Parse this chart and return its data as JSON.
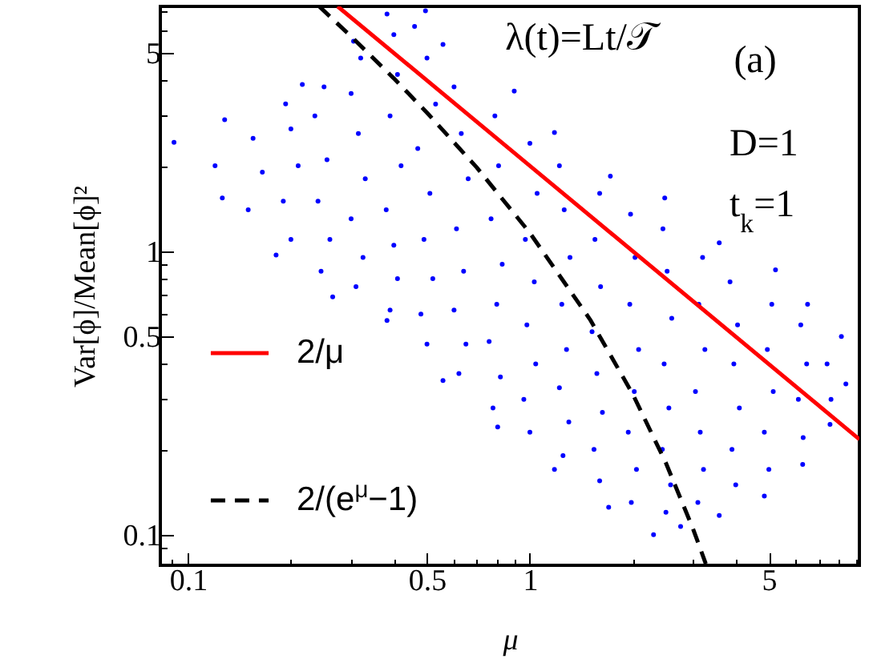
{
  "chart_data": {
    "type": "scatter",
    "xlabel": "μ",
    "ylabel": "Var[ϕ]/Mean[ϕ]²",
    "annotations": [
      "λ(t)=Lt/𝒯",
      "(a)",
      "D=1",
      "t$_{k}$=1"
    ],
    "log": "xy",
    "xlim": [
      0.083,
      9.2
    ],
    "ylim": [
      0.078,
      7.3
    ],
    "xticks": [
      {
        "value": 0.09,
        "label": null
      },
      0.1,
      {
        "value": 0.2,
        "label": null
      },
      {
        "value": 0.3,
        "label": null
      },
      {
        "value": 0.4,
        "label": null
      },
      0.5,
      {
        "value": 0.6,
        "label": null
      },
      {
        "value": 0.7,
        "label": null
      },
      {
        "value": 0.8,
        "label": null
      },
      {
        "value": 0.9,
        "label": null
      },
      1,
      {
        "value": 2,
        "label": null
      },
      {
        "value": 3,
        "label": null
      },
      {
        "value": 4,
        "label": null
      },
      5,
      {
        "value": 6,
        "label": null
      },
      {
        "value": 7,
        "label": null
      },
      {
        "value": 8,
        "label": null
      },
      {
        "value": 9,
        "label": null
      }
    ],
    "yticks": [
      {
        "value": 0.09,
        "label": null
      },
      0.1,
      {
        "value": 0.2,
        "label": null
      },
      {
        "value": 0.3,
        "label": null
      },
      {
        "value": 0.4,
        "label": null
      },
      0.5,
      {
        "value": 0.6,
        "label": null
      },
      {
        "value": 0.7,
        "label": null
      },
      {
        "value": 0.8,
        "label": null
      },
      {
        "value": 0.9,
        "label": null
      },
      1,
      {
        "value": 2,
        "label": null
      },
      {
        "value": 3,
        "label": null
      },
      {
        "value": 4,
        "label": null
      },
      5,
      {
        "value": 6,
        "label": null
      },
      {
        "value": 7,
        "label": null
      }
    ],
    "legend": "bottom left",
    "series": [
      {
        "type": "scatter",
        "color": "#0000ff",
        "marker": "circle",
        "x": [
          0.091,
          0.126,
          0.181,
          0.265,
          0.382,
          0.557,
          0.805,
          1.18,
          1.7,
          2.3,
          2.76,
          3.58,
          4.85,
          6.28,
          7.55,
          8.4,
          8.15,
          6.49,
          5.23,
          3.58,
          2.48,
          1.72,
          1.18,
          0.9,
          0.557,
          0.495,
          0.382,
          0.305,
          0.216,
          0.193,
          0.128,
          0.12,
          0.15,
          0.165,
          0.155,
          0.2,
          0.19,
          0.21,
          0.2,
          0.245,
          0.26,
          0.24,
          0.255,
          0.235,
          0.25,
          0.31,
          0.325,
          0.3,
          0.33,
          0.315,
          0.3,
          0.32,
          0.39,
          0.41,
          0.4,
          0.38,
          0.42,
          0.39,
          0.41,
          0.4,
          0.5,
          0.48,
          0.52,
          0.49,
          0.51,
          0.47,
          0.53,
          0.5,
          0.46,
          0.62,
          0.65,
          0.6,
          0.64,
          0.61,
          0.66,
          0.63,
          0.6,
          0.78,
          0.82,
          0.76,
          0.8,
          0.83,
          0.77,
          0.81,
          0.79,
          1.0,
          0.96,
          1.04,
          0.98,
          1.03,
          0.97,
          1.05,
          1.0,
          1.25,
          1.3,
          1.22,
          1.28,
          1.24,
          1.31,
          1.26,
          1.22,
          1.6,
          1.54,
          1.63,
          1.57,
          1.52,
          1.61,
          1.55,
          1.6,
          1.98,
          2.05,
          1.94,
          2.02,
          2.08,
          1.96,
          2.03,
          1.97,
          2.5,
          2.58,
          2.44,
          2.55,
          2.47,
          2.6,
          2.52,
          2.45,
          3.1,
          3.22,
          3.15,
          3.05,
          3.25,
          3.12,
          3.2,
          4.0,
          3.9,
          4.1,
          3.95,
          4.05,
          3.85,
          5.0,
          4.85,
          5.15,
          4.95,
          5.1,
          6.3,
          6.1,
          6.45,
          6.2,
          7.6,
          7.4
        ],
        "values": [
          2.42,
          1.54,
          0.97,
          0.69,
          0.57,
          0.35,
          0.24,
          0.17,
          0.125,
          0.1,
          0.107,
          0.117,
          0.137,
          0.177,
          0.245,
          0.34,
          0.5,
          0.65,
          0.86,
          1.07,
          1.54,
          1.84,
          2.62,
          3.67,
          5.36,
          7.04,
          6.86,
          5.5,
          3.87,
          3.31,
          2.91,
          2.0,
          1.4,
          1.9,
          2.5,
          1.1,
          1.5,
          2.0,
          2.7,
          0.85,
          1.1,
          1.5,
          2.1,
          3.0,
          3.8,
          0.75,
          0.95,
          1.3,
          1.8,
          2.6,
          3.6,
          4.8,
          0.62,
          0.8,
          1.05,
          1.4,
          2.0,
          3.0,
          4.2,
          5.8,
          0.47,
          0.6,
          0.8,
          1.1,
          1.6,
          2.3,
          3.3,
          4.8,
          6.2,
          0.37,
          0.47,
          0.62,
          0.85,
          1.2,
          1.8,
          2.6,
          3.8,
          0.28,
          0.36,
          0.48,
          0.65,
          0.9,
          1.3,
          2.0,
          3.0,
          0.23,
          0.3,
          0.4,
          0.55,
          0.78,
          1.1,
          1.6,
          2.4,
          0.19,
          0.25,
          0.33,
          0.45,
          0.65,
          0.95,
          1.4,
          2.0,
          0.155,
          0.2,
          0.27,
          0.37,
          0.52,
          0.75,
          1.1,
          1.6,
          0.13,
          0.17,
          0.23,
          0.32,
          0.45,
          0.65,
          0.95,
          1.35,
          0.12,
          0.15,
          0.2,
          0.28,
          0.4,
          0.58,
          0.85,
          1.2,
          0.13,
          0.17,
          0.23,
          0.32,
          0.45,
          0.65,
          0.95,
          0.15,
          0.2,
          0.28,
          0.4,
          0.55,
          0.78,
          0.17,
          0.23,
          0.32,
          0.45,
          0.65,
          0.22,
          0.3,
          0.4,
          0.55,
          0.3,
          0.4
        ]
      },
      {
        "type": "line",
        "name": "2/μ",
        "color": "#ff0000",
        "line_style": "solid",
        "x": [
          0.274,
          1,
          9.2
        ],
        "values": [
          7.3,
          2,
          0.217
        ]
      },
      {
        "type": "line",
        "name": "2/(e$^{μ}$−1)",
        "color": "#000000",
        "line_style": "dashed",
        "x": [
          0.242,
          0.3,
          0.4,
          0.5,
          0.7,
          1,
          1.5,
          2,
          2.5,
          3,
          3.27
        ],
        "values": [
          7.3,
          5.72,
          4.07,
          3.08,
          1.97,
          1.16,
          0.574,
          0.313,
          0.179,
          0.105,
          0.079
        ]
      }
    ]
  }
}
